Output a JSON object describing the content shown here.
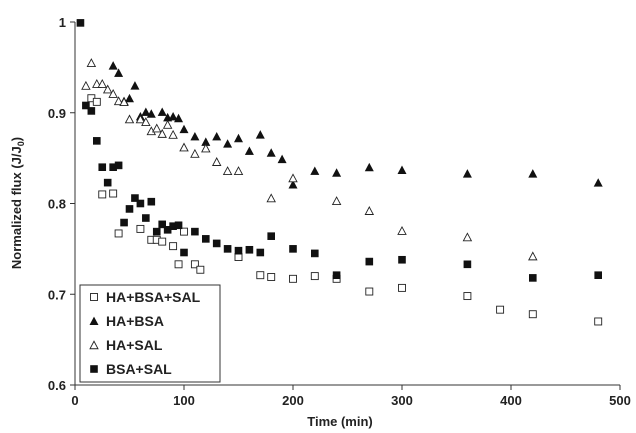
{
  "chart_data": {
    "type": "scatter",
    "xlabel": "Time (min)",
    "ylabel_main": "Normalized flux (J/J",
    "ylabel_sub": "0",
    "ylabel_close": ")",
    "xlim": [
      0,
      500
    ],
    "ylim": [
      0.6,
      1.0
    ],
    "xticks": [
      0,
      100,
      200,
      300,
      400,
      500
    ],
    "yticks": [
      0.6,
      0.7,
      0.8,
      0.9,
      1.0
    ],
    "ytick_labels": [
      "0.6",
      "0.7",
      "0.8",
      "0.9",
      "1"
    ],
    "legend_position": "bottom-left",
    "series": [
      {
        "name": "HA+BSA+SAL",
        "marker": "square-open",
        "color": "#222222",
        "points": [
          [
            15,
            0.916
          ],
          [
            20,
            0.912
          ],
          [
            25,
            0.81
          ],
          [
            35,
            0.811
          ],
          [
            40,
            0.767
          ],
          [
            60,
            0.772
          ],
          [
            70,
            0.76
          ],
          [
            75,
            0.76
          ],
          [
            80,
            0.758
          ],
          [
            90,
            0.753
          ],
          [
            95,
            0.733
          ],
          [
            100,
            0.769
          ],
          [
            110,
            0.733
          ],
          [
            115,
            0.727
          ],
          [
            150,
            0.741
          ],
          [
            170,
            0.721
          ],
          [
            180,
            0.719
          ],
          [
            200,
            0.717
          ],
          [
            220,
            0.72
          ],
          [
            240,
            0.717
          ],
          [
            270,
            0.703
          ],
          [
            300,
            0.707
          ],
          [
            360,
            0.698
          ],
          [
            390,
            0.683
          ],
          [
            420,
            0.678
          ],
          [
            480,
            0.67
          ]
        ]
      },
      {
        "name": "HA+BSA",
        "marker": "triangle-filled",
        "color": "#111111",
        "points": [
          [
            35,
            0.952
          ],
          [
            40,
            0.944
          ],
          [
            45,
            0.913
          ],
          [
            50,
            0.916
          ],
          [
            55,
            0.93
          ],
          [
            60,
            0.896
          ],
          [
            65,
            0.901
          ],
          [
            70,
            0.899
          ],
          [
            80,
            0.901
          ],
          [
            85,
            0.895
          ],
          [
            90,
            0.896
          ],
          [
            95,
            0.894
          ],
          [
            100,
            0.882
          ],
          [
            110,
            0.874
          ],
          [
            120,
            0.868
          ],
          [
            130,
            0.874
          ],
          [
            140,
            0.866
          ],
          [
            150,
            0.872
          ],
          [
            160,
            0.858
          ],
          [
            170,
            0.876
          ],
          [
            180,
            0.856
          ],
          [
            190,
            0.849
          ],
          [
            200,
            0.821
          ],
          [
            220,
            0.836
          ],
          [
            240,
            0.834
          ],
          [
            270,
            0.84
          ],
          [
            300,
            0.837
          ],
          [
            360,
            0.833
          ],
          [
            420,
            0.833
          ],
          [
            480,
            0.823
          ]
        ]
      },
      {
        "name": "HA+SAL",
        "marker": "triangle-open",
        "color": "#222222",
        "points": [
          [
            10,
            0.93
          ],
          [
            15,
            0.955
          ],
          [
            20,
            0.932
          ],
          [
            25,
            0.932
          ],
          [
            30,
            0.926
          ],
          [
            35,
            0.921
          ],
          [
            40,
            0.913
          ],
          [
            45,
            0.912
          ],
          [
            50,
            0.893
          ],
          [
            60,
            0.893
          ],
          [
            65,
            0.89
          ],
          [
            70,
            0.88
          ],
          [
            75,
            0.883
          ],
          [
            80,
            0.877
          ],
          [
            85,
            0.887
          ],
          [
            90,
            0.876
          ],
          [
            100,
            0.862
          ],
          [
            110,
            0.855
          ],
          [
            120,
            0.861
          ],
          [
            130,
            0.846
          ],
          [
            140,
            0.836
          ],
          [
            150,
            0.836
          ],
          [
            180,
            0.806
          ],
          [
            200,
            0.828
          ],
          [
            240,
            0.803
          ],
          [
            270,
            0.792
          ],
          [
            300,
            0.77
          ],
          [
            360,
            0.763
          ],
          [
            420,
            0.742
          ]
        ]
      },
      {
        "name": "BSA+SAL",
        "marker": "square-filled",
        "color": "#111111",
        "points": [
          [
            5,
            0.999
          ],
          [
            10,
            0.908
          ],
          [
            15,
            0.902
          ],
          [
            20,
            0.869
          ],
          [
            25,
            0.84
          ],
          [
            30,
            0.823
          ],
          [
            35,
            0.84
          ],
          [
            40,
            0.842
          ],
          [
            45,
            0.779
          ],
          [
            50,
            0.794
          ],
          [
            55,
            0.806
          ],
          [
            60,
            0.8
          ],
          [
            65,
            0.784
          ],
          [
            70,
            0.802
          ],
          [
            75,
            0.769
          ],
          [
            80,
            0.777
          ],
          [
            85,
            0.771
          ],
          [
            90,
            0.775
          ],
          [
            95,
            0.776
          ],
          [
            100,
            0.746
          ],
          [
            110,
            0.769
          ],
          [
            120,
            0.761
          ],
          [
            130,
            0.756
          ],
          [
            140,
            0.75
          ],
          [
            150,
            0.748
          ],
          [
            160,
            0.749
          ],
          [
            170,
            0.746
          ],
          [
            180,
            0.764
          ],
          [
            200,
            0.75
          ],
          [
            220,
            0.745
          ],
          [
            240,
            0.721
          ],
          [
            270,
            0.736
          ],
          [
            300,
            0.738
          ],
          [
            360,
            0.733
          ],
          [
            420,
            0.718
          ],
          [
            480,
            0.721
          ]
        ]
      }
    ]
  }
}
